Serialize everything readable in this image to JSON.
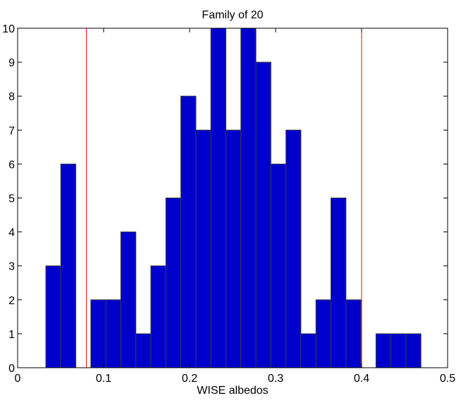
{
  "chart_data": {
    "type": "bar",
    "title": "Family of 20",
    "xlabel": "WISE albedos",
    "ylabel": "",
    "xlim": [
      0,
      0.5
    ],
    "ylim": [
      0,
      10
    ],
    "x_ticks": [
      "0",
      "0.1",
      "0.2",
      "0.3",
      "0.4",
      "0.5"
    ],
    "y_ticks": [
      "0",
      "1",
      "2",
      "3",
      "4",
      "5",
      "6",
      "7",
      "8",
      "9",
      "10"
    ],
    "bin_width": 0.01745,
    "bins": [
      {
        "x0": 0.0328,
        "x1": 0.0502,
        "count": 3
      },
      {
        "x0": 0.0502,
        "x1": 0.0677,
        "count": 6
      },
      {
        "x0": 0.0677,
        "x1": 0.0851,
        "count": 0
      },
      {
        "x0": 0.0851,
        "x1": 0.1026,
        "count": 2
      },
      {
        "x0": 0.1026,
        "x1": 0.12,
        "count": 2
      },
      {
        "x0": 0.12,
        "x1": 0.1375,
        "count": 4
      },
      {
        "x0": 0.1375,
        "x1": 0.1549,
        "count": 1
      },
      {
        "x0": 0.1549,
        "x1": 0.1724,
        "count": 3
      },
      {
        "x0": 0.1724,
        "x1": 0.1898,
        "count": 5
      },
      {
        "x0": 0.1898,
        "x1": 0.2073,
        "count": 8
      },
      {
        "x0": 0.2073,
        "x1": 0.2247,
        "count": 7
      },
      {
        "x0": 0.2247,
        "x1": 0.2422,
        "count": 10
      },
      {
        "x0": 0.2422,
        "x1": 0.2596,
        "count": 7
      },
      {
        "x0": 0.2596,
        "x1": 0.2771,
        "count": 10
      },
      {
        "x0": 0.2771,
        "x1": 0.2945,
        "count": 9
      },
      {
        "x0": 0.2945,
        "x1": 0.312,
        "count": 6
      },
      {
        "x0": 0.312,
        "x1": 0.3294,
        "count": 7
      },
      {
        "x0": 0.3294,
        "x1": 0.3469,
        "count": 1
      },
      {
        "x0": 0.3469,
        "x1": 0.3643,
        "count": 2
      },
      {
        "x0": 0.3643,
        "x1": 0.3818,
        "count": 5
      },
      {
        "x0": 0.3818,
        "x1": 0.3992,
        "count": 2
      },
      {
        "x0": 0.3992,
        "x1": 0.4167,
        "count": 0
      },
      {
        "x0": 0.4167,
        "x1": 0.4341,
        "count": 1
      },
      {
        "x0": 0.4341,
        "x1": 0.4516,
        "count": 1
      },
      {
        "x0": 0.4516,
        "x1": 0.469,
        "count": 1
      }
    ],
    "vertical_lines": [
      0.08,
      0.4
    ],
    "bar_color": "#0000cd",
    "bar_edge_color": "#3c3c3c",
    "line_color": "#ff0000",
    "grid": false,
    "legend": "none"
  }
}
